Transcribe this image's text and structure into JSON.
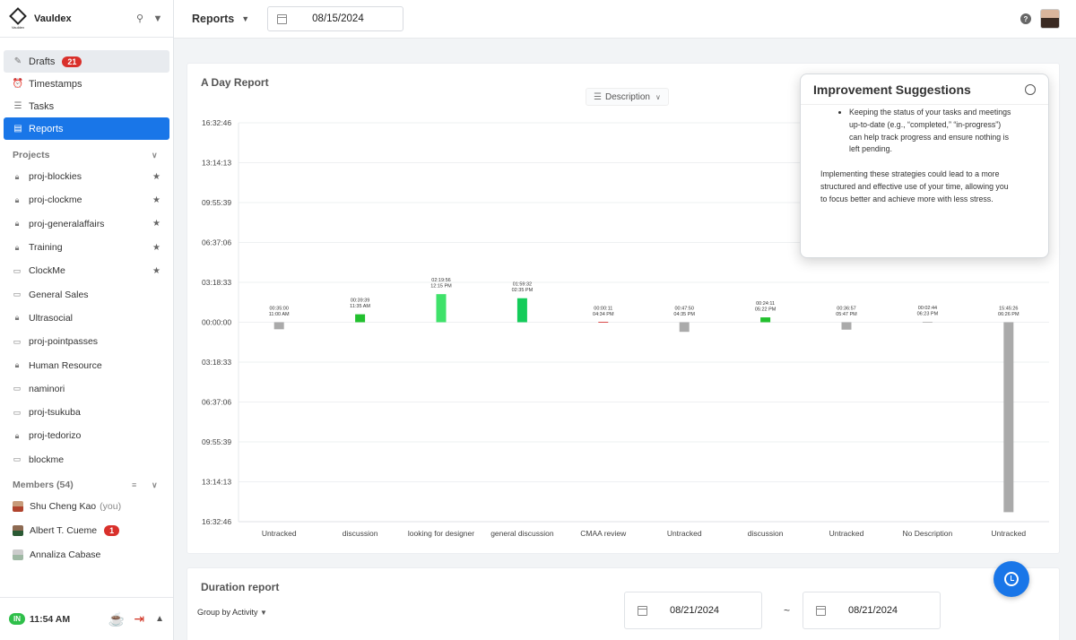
{
  "app": {
    "name": "Vauldex",
    "logo_text": "Vauldex"
  },
  "nav": {
    "items": [
      {
        "label": "Drafts",
        "badge": "21"
      },
      {
        "label": "Timestamps"
      },
      {
        "label": "Tasks"
      },
      {
        "label": "Reports"
      }
    ]
  },
  "projects": {
    "header": "Projects",
    "items": [
      {
        "label": "proj-blockies"
      },
      {
        "label": "proj-clockme"
      },
      {
        "label": "proj-generalaffairs"
      },
      {
        "label": "Training"
      },
      {
        "label": "ClockMe"
      },
      {
        "label": "General Sales"
      },
      {
        "label": "Ultrasocial"
      },
      {
        "label": "proj-pointpasses"
      },
      {
        "label": "Human Resource"
      },
      {
        "label": "naminori"
      },
      {
        "label": "proj-tsukuba"
      },
      {
        "label": "proj-tedorizo"
      },
      {
        "label": "blockme"
      }
    ]
  },
  "members": {
    "header": "Members (54)",
    "items": [
      {
        "name": "Shu Cheng Kao",
        "suffix": "(you)"
      },
      {
        "name": "Albert T. Cueme",
        "badge": "1"
      },
      {
        "name": "Annaliza Cabase"
      }
    ]
  },
  "footer": {
    "status": "IN",
    "time": "11:54 AM"
  },
  "topbar": {
    "report_select": "Reports",
    "date": "08/15/2024"
  },
  "report": {
    "title": "A Day Report",
    "dropdown": "Description"
  },
  "chart_data": {
    "type": "bar",
    "categories": [
      "Untracked",
      "discussion",
      "looking for designer",
      "general discussion",
      "CMAA review",
      "Untracked",
      "discussion",
      "Untracked",
      "No Description",
      "Untracked"
    ],
    "y_ticks": [
      "16:32:46",
      "13:14:13",
      "09:55:39",
      "06:37:06",
      "03:18:33",
      "00:00:00",
      "03:18:33",
      "06:37:06",
      "09:55:39",
      "13:14:13",
      "16:32:46"
    ],
    "ylim_seconds": [
      -59566,
      59566
    ],
    "series": [
      {
        "values_seconds": [
          -2100,
          2379,
          8396,
          7172,
          11,
          -2870,
          1451,
          -2217,
          164,
          -56726
        ],
        "duration_labels": [
          "00:35:00",
          "00:39:39",
          "02:19:56",
          "01:59:32",
          "00:00:11",
          "00:47:50",
          "00:24:11",
          "00:36:57",
          "00:02:44",
          "15:45:26"
        ],
        "time_labels": [
          "11:00 AM",
          "11:35 AM",
          "12:15 PM",
          "02:35 PM",
          "04:34 PM",
          "04:35 PM",
          "05:22 PM",
          "05:47 PM",
          "06:23 PM",
          "06:26 PM"
        ],
        "colors": [
          "#aaaaaa",
          "#22c02e",
          "#3fe26a",
          "#14cc5a",
          "#d84a4a",
          "#aaaaaa",
          "#22c02e",
          "#aaaaaa",
          "#bbbbbb",
          "#aaaaaa"
        ]
      }
    ]
  },
  "suggestions": {
    "title": "Improvement Suggestions",
    "bullet": "Keeping the status of your tasks and meetings up-to-date (e.g., “completed,” “in-progress”) can help track progress and ensure nothing is left pending.",
    "paragraph": "Implementing these strategies could lead to a more structured and effective use of your time, allowing you to focus better and achieve more with less stress."
  },
  "duration": {
    "title": "Duration report",
    "group_by": "Group by Activity",
    "from": "08/21/2024",
    "to": "08/21/2024",
    "separator": "~"
  },
  "colors": {
    "accent": "#1976e8",
    "badge": "#d9302b",
    "in": "#2fbf4a"
  }
}
